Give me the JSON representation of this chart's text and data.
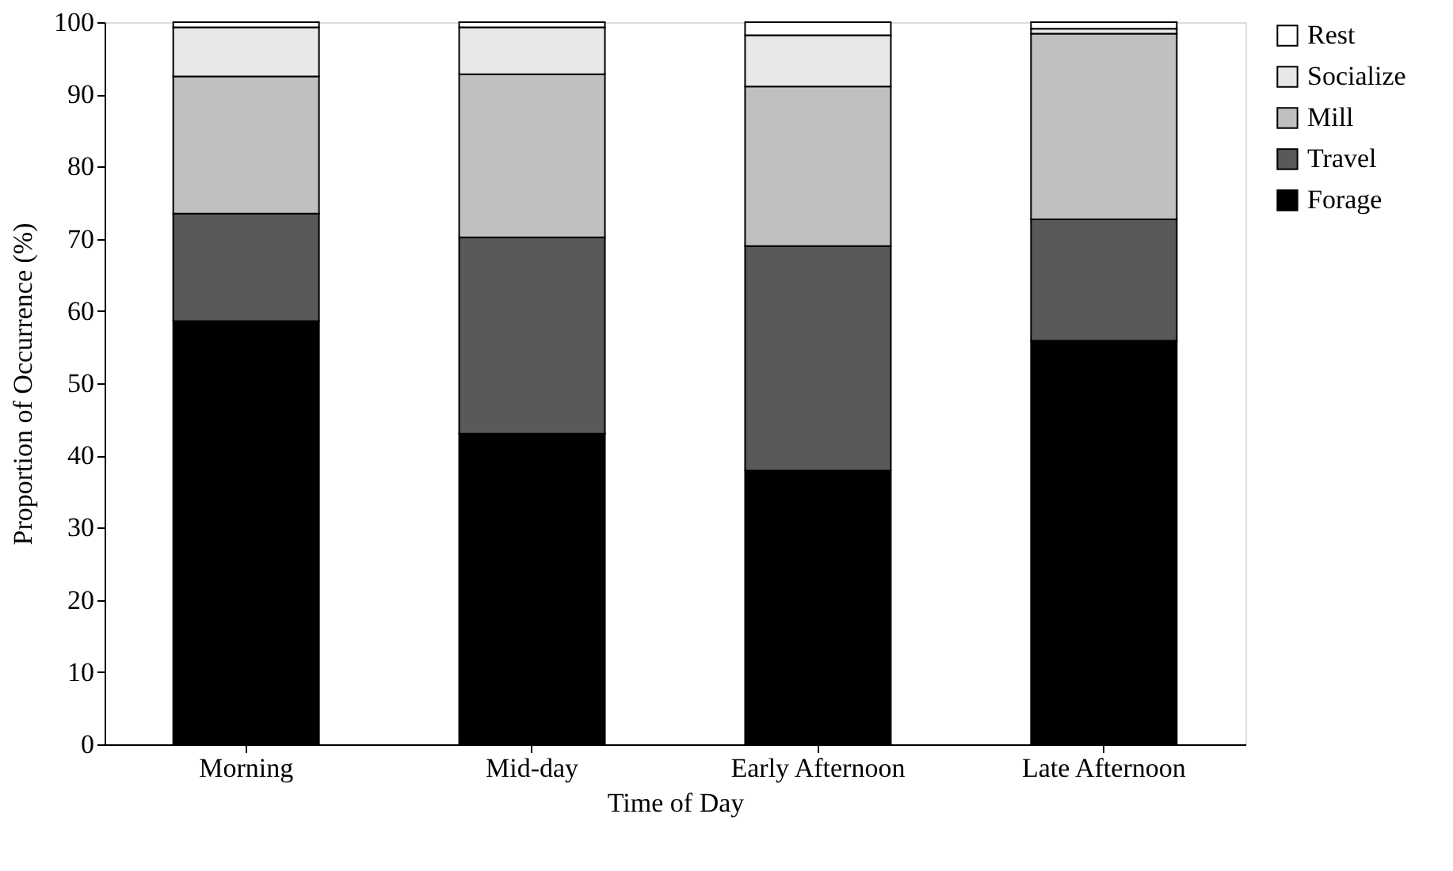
{
  "chart_data": {
    "type": "bar",
    "stacked": true,
    "xlabel": "Time of Day",
    "ylabel": "Proportion of Occurrence (%)",
    "categories": [
      "Morning",
      "Mid-day",
      "Early Afternoon",
      "Late Afternoon"
    ],
    "series": [
      {
        "name": "Forage",
        "color": "#000000",
        "values": [
          58.6,
          43.0,
          37.9,
          55.9
        ]
      },
      {
        "name": "Travel",
        "color": "#595959",
        "values": [
          14.9,
          27.2,
          31.1,
          16.8
        ]
      },
      {
        "name": "Mill",
        "color": "#c0c0c0",
        "values": [
          19.0,
          22.6,
          22.1,
          25.7
        ]
      },
      {
        "name": "Socialize",
        "color": "#e8e8e8",
        "values": [
          6.8,
          6.5,
          7.1,
          0.7
        ]
      },
      {
        "name": "Rest",
        "color": "#ffffff",
        "values": [
          0.7,
          0.7,
          1.8,
          0.9
        ]
      }
    ],
    "ylim": [
      0,
      100
    ],
    "yticks": [
      0,
      10,
      20,
      30,
      40,
      50,
      60,
      70,
      80,
      90,
      100
    ],
    "grid": false,
    "legend": "right"
  }
}
